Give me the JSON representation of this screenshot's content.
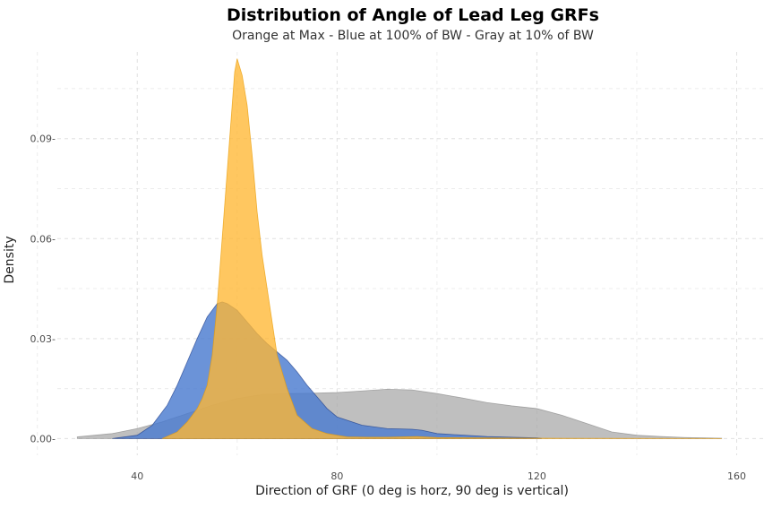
{
  "chart_data": {
    "type": "area",
    "title": "Distribution of Angle of Lead Leg GRFs",
    "subtitle": "Orange at Max - Blue at 100% of BW - Gray at 10% of BW",
    "xlabel": "Direction of GRF (0 deg is horz, 90 deg is vertical)",
    "ylabel": "Density",
    "xlim": [
      24,
      166
    ],
    "ylim": [
      -0.005,
      0.116
    ],
    "x_ticks": [
      40,
      80,
      120,
      160
    ],
    "x_tick_labels": [
      "40",
      "80",
      "120",
      "160"
    ],
    "y_ticks": [
      0.0,
      0.03,
      0.06,
      0.09
    ],
    "y_tick_labels": [
      "0.00-",
      "0.03-",
      "0.06-",
      "0.09-"
    ],
    "grid": true,
    "legend": "none",
    "series": [
      {
        "color": "#a9a9a9",
        "opacity": 0.75,
        "x": [
          28,
          35,
          40,
          45,
          50,
          55,
          60,
          65,
          70,
          75,
          80,
          85,
          90,
          95,
          100,
          105,
          110,
          115,
          120,
          125,
          130,
          135,
          140,
          145,
          150,
          157
        ],
        "y": [
          0.0005,
          0.0015,
          0.003,
          0.005,
          0.0075,
          0.01,
          0.012,
          0.0132,
          0.0135,
          0.0136,
          0.0138,
          0.0143,
          0.0148,
          0.0146,
          0.0135,
          0.0122,
          0.0108,
          0.0098,
          0.009,
          0.007,
          0.0045,
          0.002,
          0.001,
          0.0006,
          0.0003,
          0.0001
        ]
      },
      {
        "color": "#4a7bd0",
        "opacity": 0.82,
        "x": [
          35,
          40,
          43,
          46,
          48,
          50,
          52,
          54,
          56,
          57,
          58,
          60,
          62,
          64,
          66,
          68,
          70,
          72,
          74,
          76,
          78,
          80,
          85,
          90,
          95,
          97,
          100,
          110,
          120,
          121
        ],
        "y": [
          0.0,
          0.001,
          0.004,
          0.01,
          0.016,
          0.023,
          0.03,
          0.0365,
          0.0405,
          0.041,
          0.0405,
          0.0385,
          0.035,
          0.0315,
          0.0285,
          0.026,
          0.0235,
          0.02,
          0.016,
          0.0125,
          0.009,
          0.0065,
          0.004,
          0.003,
          0.0028,
          0.0025,
          0.0015,
          0.0006,
          0.0002,
          0.0
        ]
      },
      {
        "color": "#ffb733",
        "opacity": 0.78,
        "x": [
          45,
          48,
          50,
          52,
          53,
          54,
          55,
          56,
          57,
          58,
          59,
          59.5,
          60,
          61,
          62,
          63,
          64,
          65,
          66,
          67,
          68,
          70,
          72,
          75,
          78,
          82,
          86,
          90,
          96,
          100,
          110,
          120,
          157
        ],
        "y": [
          0.0,
          0.002,
          0.005,
          0.009,
          0.012,
          0.016,
          0.025,
          0.04,
          0.06,
          0.08,
          0.1,
          0.11,
          0.114,
          0.109,
          0.1,
          0.085,
          0.068,
          0.055,
          0.045,
          0.035,
          0.025,
          0.015,
          0.007,
          0.003,
          0.0015,
          0.0005,
          0.0004,
          0.0004,
          0.0006,
          0.0003,
          0.0002,
          0.0001,
          0.0
        ]
      }
    ]
  }
}
